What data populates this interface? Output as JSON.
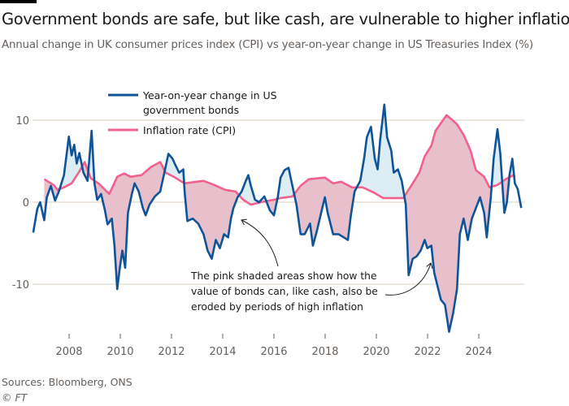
{
  "title": "Government bonds are safe, but like cash, are vulnerable to higher inflation",
  "subtitle": "Annual change in UK consumer prices index (CPI) vs year-on-year change in US Treasuries Index (%)",
  "source": "Sources: Bloomberg, ONS",
  "copyright": "© FT",
  "annotations": {
    "left_lines": [
      "The pink shaded areas show how the",
      "value of bonds can, like cash, also be",
      "eroded by periods of high inflation"
    ]
  },
  "colors": {
    "bonds": "#0f5499",
    "cpi": "#f2608c",
    "pink_fill": "#e8c0cc",
    "blue_fill": "#dcedf4",
    "grid": "#d9ccc3",
    "axis_text": "#66605c"
  },
  "chart_data": {
    "type": "line",
    "title": "Government bonds are safe, but like cash, are vulnerable to higher inflation",
    "ylabel": "",
    "xlabel": "",
    "xlim": [
      2006.5,
      2025.75
    ],
    "ylim": [
      -16,
      13
    ],
    "y_ticks": [
      10,
      0,
      -10
    ],
    "y_tick_labels": [
      "10",
      "0",
      "-10"
    ],
    "x_ticks": [
      2008,
      2010,
      2012,
      2014,
      2016,
      2018,
      2020,
      2022,
      2024
    ],
    "x_tick_labels": [
      "2008",
      "2010",
      "2012",
      "2014",
      "2016",
      "2018",
      "2020",
      "2022",
      "2024"
    ],
    "grid": "horizontal",
    "legend": "top-left",
    "shading": "pink where inflation exceeds bond return, light blue where bond return exceeds inflation",
    "series": [
      {
        "name": "Year-on-year change in US government bonds",
        "color": "#0f5499",
        "x": [
          2006.6,
          2006.76,
          2006.87,
          2007.03,
          2007.13,
          2007.29,
          2007.45,
          2007.6,
          2007.8,
          2007.99,
          2008.1,
          2008.2,
          2008.3,
          2008.4,
          2008.56,
          2008.72,
          2008.88,
          2008.99,
          2009.1,
          2009.25,
          2009.4,
          2009.5,
          2009.67,
          2009.77,
          2009.88,
          2009.98,
          2010.08,
          2010.19,
          2010.3,
          2010.45,
          2010.56,
          2010.72,
          2010.88,
          2010.99,
          2011.14,
          2011.35,
          2011.56,
          2011.72,
          2011.88,
          2012.04,
          2012.14,
          2012.3,
          2012.46,
          2012.51,
          2012.62,
          2012.83,
          2013.04,
          2013.25,
          2013.41,
          2013.57,
          2013.73,
          2013.89,
          2014.05,
          2014.21,
          2014.32,
          2014.42,
          2014.58,
          2014.74,
          2014.9,
          2015.0,
          2015.1,
          2015.26,
          2015.42,
          2015.63,
          2015.84,
          2016.0,
          2016.15,
          2016.26,
          2016.41,
          2016.57,
          2016.72,
          2016.88,
          2017.04,
          2017.2,
          2017.41,
          2017.52,
          2017.67,
          2017.89,
          2017.99,
          2018.1,
          2018.31,
          2018.52,
          2018.73,
          2018.89,
          2019.0,
          2019.15,
          2019.37,
          2019.52,
          2019.63,
          2019.79,
          2019.94,
          2020.05,
          2020.15,
          2020.31,
          2020.42,
          2020.58,
          2020.68,
          2020.84,
          2020.99,
          2021.15,
          2021.26,
          2021.42,
          2021.57,
          2021.73,
          2021.89,
          2021.99,
          2022.15,
          2022.26,
          2022.42,
          2022.52,
          2022.68,
          2022.84,
          2023.0,
          2023.15,
          2023.26,
          2023.41,
          2023.57,
          2023.73,
          2023.89,
          2024.05,
          2024.21,
          2024.31,
          2024.47,
          2024.58,
          2024.73,
          2024.84,
          2024.94,
          2025.0,
          2025.1,
          2025.2,
          2025.31,
          2025.41,
          2025.52,
          2025.66
        ],
        "values": [
          -3.7,
          -0.8,
          0,
          -2.2,
          0.6,
          2.0,
          0.2,
          1.3,
          3.3,
          8.0,
          5.7,
          7.0,
          4.7,
          6.0,
          3.6,
          2.6,
          8.7,
          2.3,
          0.3,
          1.0,
          -1.0,
          -2.7,
          -2.0,
          -5.3,
          -10.6,
          -8.0,
          -5.9,
          -8.0,
          -1.3,
          1.0,
          2.3,
          1.3,
          -0.7,
          -1.6,
          -0.3,
          0.7,
          1.3,
          3.6,
          5.9,
          5.3,
          4.6,
          3.6,
          4.0,
          1.3,
          -2.3,
          -2.0,
          -2.6,
          -3.9,
          -5.9,
          -6.9,
          -4.6,
          -5.6,
          -3.9,
          -4.3,
          -2.0,
          -0.7,
          0.6,
          1.3,
          2.6,
          3.3,
          2.0,
          0.3,
          0,
          0.7,
          -1.0,
          -1.6,
          0.6,
          3.0,
          3.9,
          4.2,
          2.0,
          -0.3,
          -3.9,
          -3.9,
          -2.6,
          -5.3,
          -3.6,
          -0.7,
          0.6,
          -1.3,
          -3.9,
          -3.9,
          -4.3,
          -4.6,
          -1.7,
          1.3,
          2.6,
          5.3,
          7.9,
          9.2,
          5.3,
          4.0,
          7.6,
          11.9,
          7.9,
          6.3,
          3.6,
          4.0,
          2.6,
          -0.3,
          -8.9,
          -6.9,
          -6.6,
          -5.9,
          -4.6,
          -5.6,
          -5.3,
          -8.6,
          -10.6,
          -11.9,
          -12.5,
          -15.8,
          -13.5,
          -10.6,
          -3.9,
          -2.0,
          -4.6,
          -2.0,
          -0.7,
          0.6,
          -1.3,
          -4.3,
          0.6,
          5.3,
          8.9,
          5.9,
          1.3,
          -1.3,
          0,
          3.3,
          5.3,
          2.3,
          1.6,
          -0.7
        ]
      },
      {
        "name": "Inflation rate (CPI)",
        "color": "#f2608c",
        "x": [
          2007.03,
          2007.4,
          2007.55,
          2007.8,
          2008.1,
          2008.37,
          2008.61,
          2008.85,
          2009.15,
          2009.57,
          2009.88,
          2010.15,
          2010.4,
          2010.83,
          2011.2,
          2011.56,
          2011.77,
          2012.09,
          2012.5,
          2013.25,
          2013.67,
          2014.1,
          2014.5,
          2014.8,
          2015.1,
          2015.5,
          2016.0,
          2016.26,
          2016.72,
          2017.04,
          2017.36,
          2017.99,
          2018.31,
          2018.63,
          2019.05,
          2019.47,
          2019.89,
          2020.26,
          2020.63,
          2021.05,
          2021.36,
          2021.68,
          2021.89,
          2022.15,
          2022.31,
          2022.74,
          2022.94,
          2023.15,
          2023.41,
          2023.68,
          2023.89,
          2024.21,
          2024.42,
          2024.73,
          2025.05,
          2025.36,
          2025.41
        ],
        "values": [
          2.8,
          2.1,
          1.5,
          1.8,
          2.3,
          3.6,
          4.9,
          2.9,
          2.3,
          1.0,
          3.1,
          3.5,
          3.1,
          3.3,
          4.3,
          4.9,
          3.6,
          3.1,
          2.3,
          2.6,
          2.1,
          1.5,
          1.3,
          0.3,
          -0.3,
          0,
          0.3,
          0.5,
          0.7,
          2.0,
          2.8,
          3.0,
          2.3,
          2.5,
          1.8,
          1.8,
          1.2,
          0.5,
          0.5,
          0.5,
          2.0,
          3.6,
          5.6,
          6.9,
          8.7,
          10.6,
          10.1,
          9.5,
          8.2,
          6.3,
          3.9,
          3.1,
          1.8,
          2.1,
          2.8,
          3.3,
          3.1
        ]
      }
    ]
  }
}
